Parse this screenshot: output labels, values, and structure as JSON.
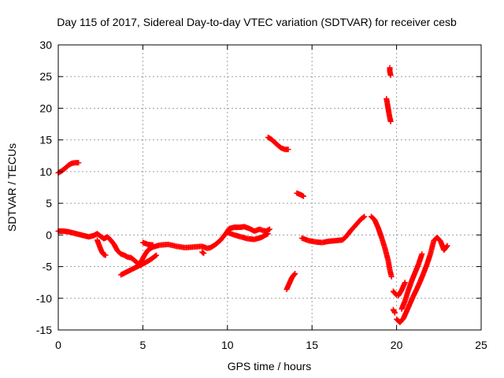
{
  "chart_data": {
    "type": "scatter",
    "title": "Day 115 of 2017, Sidereal Day-to-day VTEC variation (SDTVAR) for receiver cesb",
    "xlabel": "GPS time / hours",
    "ylabel": "SDTVAR / TECUs",
    "xlim": [
      0,
      25
    ],
    "ylim": [
      -15,
      30
    ],
    "xticks": [
      0,
      5,
      10,
      15,
      20,
      25
    ],
    "yticks": [
      -15,
      -10,
      -5,
      0,
      5,
      10,
      15,
      20,
      25,
      30
    ],
    "grid": true,
    "marker": "plus",
    "color": "#ff0000",
    "series": [
      {
        "name": "seg-a",
        "points": [
          [
            0.0,
            9.8
          ],
          [
            0.2,
            10.1
          ],
          [
            0.4,
            10.5
          ],
          [
            0.6,
            11.0
          ],
          [
            0.8,
            11.3
          ],
          [
            1.0,
            11.4
          ],
          [
            1.2,
            11.4
          ]
        ]
      },
      {
        "name": "seg-b",
        "points": [
          [
            0.0,
            0.6
          ],
          [
            0.3,
            0.6
          ],
          [
            0.6,
            0.5
          ],
          [
            0.9,
            0.3
          ],
          [
            1.2,
            0.1
          ],
          [
            1.5,
            -0.1
          ],
          [
            1.8,
            -0.3
          ],
          [
            2.1,
            -0.1
          ],
          [
            2.3,
            0.2
          ],
          [
            2.5,
            -0.2
          ],
          [
            2.7,
            -0.6
          ],
          [
            2.9,
            -0.3
          ],
          [
            3.1,
            -0.8
          ],
          [
            3.3,
            -1.5
          ],
          [
            3.5,
            -2.5
          ],
          [
            3.7,
            -3.0
          ],
          [
            3.9,
            -3.2
          ],
          [
            4.1,
            -3.5
          ],
          [
            4.3,
            -3.6
          ],
          [
            4.5,
            -4.0
          ],
          [
            4.7,
            -4.5
          ],
          [
            4.9,
            -4.8
          ]
        ]
      },
      {
        "name": "seg-c",
        "points": [
          [
            2.3,
            -0.8
          ],
          [
            2.4,
            -1.5
          ],
          [
            2.5,
            -2.2
          ],
          [
            2.6,
            -2.8
          ],
          [
            2.7,
            -3.1
          ],
          [
            2.8,
            -3.2
          ]
        ]
      },
      {
        "name": "seg-d",
        "points": [
          [
            3.7,
            -6.3
          ],
          [
            4.0,
            -5.9
          ],
          [
            4.3,
            -5.5
          ],
          [
            4.6,
            -5.1
          ],
          [
            4.9,
            -4.7
          ],
          [
            5.2,
            -4.3
          ],
          [
            5.5,
            -3.8
          ],
          [
            5.8,
            -3.2
          ]
        ]
      },
      {
        "name": "seg-e",
        "points": [
          [
            4.7,
            -4.8
          ],
          [
            4.9,
            -4.2
          ],
          [
            5.1,
            -3.2
          ],
          [
            5.3,
            -2.4
          ],
          [
            5.6,
            -1.9
          ],
          [
            6.0,
            -1.6
          ],
          [
            6.5,
            -1.5
          ],
          [
            7.0,
            -1.8
          ],
          [
            7.5,
            -2.0
          ],
          [
            8.0,
            -1.9
          ],
          [
            8.5,
            -1.8
          ],
          [
            8.8,
            -2.1
          ],
          [
            9.0,
            -2.0
          ],
          [
            9.3,
            -1.5
          ],
          [
            9.6,
            -0.8
          ],
          [
            9.9,
            0.2
          ],
          [
            10.1,
            1.0
          ],
          [
            10.4,
            1.2
          ],
          [
            10.7,
            1.2
          ],
          [
            11.0,
            1.3
          ],
          [
            11.3,
            1.0
          ],
          [
            11.6,
            0.6
          ],
          [
            11.9,
            0.9
          ],
          [
            12.1,
            0.7
          ],
          [
            12.3,
            0.6
          ],
          [
            12.5,
            0.9
          ]
        ]
      },
      {
        "name": "seg-f",
        "points": [
          [
            5.0,
            -1.2
          ],
          [
            5.3,
            -1.5
          ],
          [
            5.6,
            -1.6
          ]
        ]
      },
      {
        "name": "seg-g",
        "points": [
          [
            8.5,
            -2.7
          ],
          [
            8.6,
            -2.9
          ]
        ]
      },
      {
        "name": "seg-h",
        "points": [
          [
            10.0,
            0.4
          ],
          [
            10.4,
            0.0
          ],
          [
            10.8,
            -0.3
          ],
          [
            11.2,
            -0.6
          ],
          [
            11.6,
            -0.7
          ],
          [
            12.0,
            -0.4
          ],
          [
            12.4,
            0.2
          ]
        ]
      },
      {
        "name": "seg-i",
        "points": [
          [
            12.4,
            15.4
          ],
          [
            12.6,
            15.1
          ],
          [
            12.8,
            14.6
          ],
          [
            13.0,
            14.1
          ],
          [
            13.2,
            13.7
          ],
          [
            13.4,
            13.5
          ],
          [
            13.6,
            13.5
          ]
        ]
      },
      {
        "name": "seg-j",
        "points": [
          [
            13.5,
            -8.6
          ],
          [
            13.6,
            -8.0
          ],
          [
            13.7,
            -7.4
          ],
          [
            13.8,
            -6.8
          ],
          [
            13.9,
            -6.4
          ],
          [
            14.0,
            -6.1
          ]
        ]
      },
      {
        "name": "seg-k",
        "points": [
          [
            14.1,
            6.6
          ],
          [
            14.3,
            6.4
          ],
          [
            14.5,
            6.1
          ]
        ]
      },
      {
        "name": "seg-l",
        "points": [
          [
            14.4,
            -0.5
          ],
          [
            14.8,
            -0.9
          ],
          [
            15.2,
            -1.1
          ],
          [
            15.6,
            -1.2
          ],
          [
            16.0,
            -1.0
          ],
          [
            16.4,
            -0.9
          ],
          [
            16.8,
            -0.8
          ],
          [
            17.0,
            -0.3
          ],
          [
            17.3,
            0.7
          ],
          [
            17.6,
            1.6
          ],
          [
            17.9,
            2.5
          ],
          [
            18.1,
            2.9
          ]
        ]
      },
      {
        "name": "seg-m",
        "points": [
          [
            18.5,
            2.9
          ],
          [
            18.7,
            2.4
          ],
          [
            18.9,
            1.2
          ],
          [
            19.1,
            -0.3
          ],
          [
            19.3,
            -2.0
          ],
          [
            19.5,
            -4.0
          ],
          [
            19.6,
            -5.5
          ],
          [
            19.7,
            -6.6
          ]
        ]
      },
      {
        "name": "seg-n",
        "points": [
          [
            19.4,
            21.5
          ],
          [
            19.45,
            20.8
          ],
          [
            19.5,
            20.0
          ],
          [
            19.55,
            19.2
          ],
          [
            19.6,
            18.5
          ],
          [
            19.65,
            17.9
          ]
        ]
      },
      {
        "name": "seg-o",
        "points": [
          [
            19.6,
            26.4
          ],
          [
            19.6,
            25.8
          ],
          [
            19.65,
            25.2
          ]
        ]
      },
      {
        "name": "seg-p",
        "points": [
          [
            19.8,
            -8.9
          ],
          [
            20.0,
            -9.5
          ]
        ]
      },
      {
        "name": "seg-q",
        "points": [
          [
            19.8,
            -11.8
          ],
          [
            19.9,
            -12.3
          ]
        ]
      },
      {
        "name": "seg-r",
        "points": [
          [
            20.0,
            -13.3
          ],
          [
            20.2,
            -13.8
          ],
          [
            20.4,
            -13.2
          ],
          [
            20.6,
            -12.0
          ],
          [
            20.8,
            -10.8
          ],
          [
            21.0,
            -9.6
          ],
          [
            21.2,
            -8.5
          ],
          [
            21.4,
            -7.3
          ],
          [
            21.6,
            -6.0
          ],
          [
            21.8,
            -4.6
          ],
          [
            22.0,
            -3.0
          ],
          [
            22.2,
            -0.9
          ],
          [
            22.4,
            -0.4
          ],
          [
            22.6,
            -1.0
          ],
          [
            22.8,
            -2.4
          ],
          [
            23.0,
            -1.7
          ]
        ]
      },
      {
        "name": "seg-s",
        "points": [
          [
            20.3,
            -11.7
          ],
          [
            20.5,
            -10.4
          ],
          [
            20.7,
            -8.7
          ],
          [
            20.9,
            -7.2
          ],
          [
            21.1,
            -5.9
          ],
          [
            21.3,
            -4.6
          ],
          [
            21.5,
            -3.0
          ]
        ]
      },
      {
        "name": "seg-t",
        "points": [
          [
            20.1,
            -9.6
          ],
          [
            20.3,
            -8.7
          ],
          [
            20.5,
            -7.5
          ]
        ]
      }
    ]
  }
}
